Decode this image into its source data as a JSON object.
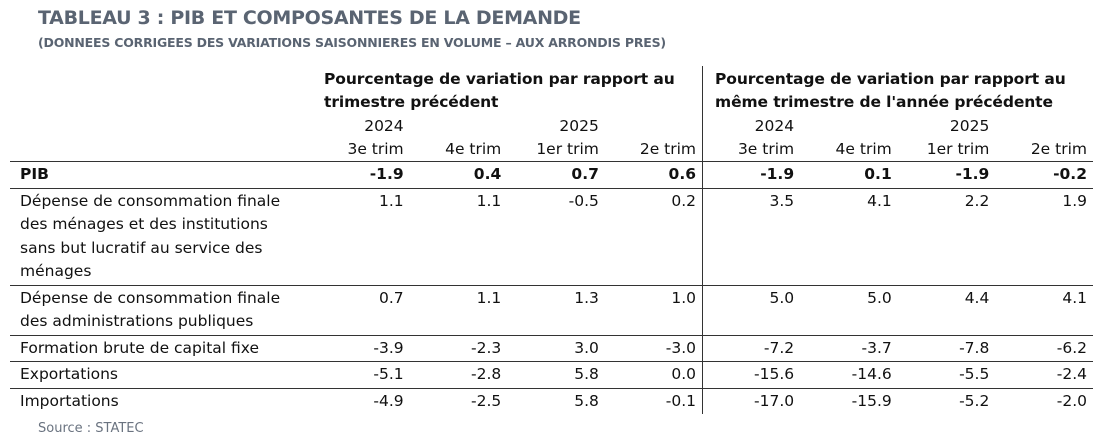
{
  "title": "TABLEAU 3 : PIB ET COMPOSANTES DE LA DEMANDE",
  "subtitle": "(DONNEES CORRIGEES DES VARIATIONS SAISONNIERES EN VOLUME – AUX ARRONDIS PRES)",
  "groups": [
    "Pourcentage de variation par rapport au trimestre précédent",
    "Pourcentage de variation par rapport au même trimestre de l'année précédente"
  ],
  "years": [
    "2024",
    "2025",
    "2024",
    "2025"
  ],
  "quarters": [
    "3e trim",
    "4e trim",
    "1er trim",
    "2e trim",
    "3e trim",
    "4e trim",
    "1er trim",
    "2e trim"
  ],
  "rows": [
    {
      "label": "PIB",
      "values": [
        "-1.9",
        "0.4",
        "0.7",
        "0.6",
        "-1.9",
        "0.1",
        "-1.9",
        "-0.2"
      ]
    },
    {
      "label": "Dépense de consommation finale des ménages et des institutions sans but lucratif au service des ménages",
      "values": [
        "1.1",
        "1.1",
        "-0.5",
        "0.2",
        "3.5",
        "4.1",
        "2.2",
        "1.9"
      ]
    },
    {
      "label": "Dépense de consommation finale des administrations publiques",
      "values": [
        "0.7",
        "1.1",
        "1.3",
        "1.0",
        "5.0",
        "5.0",
        "4.4",
        "4.1"
      ]
    },
    {
      "label": "Formation brute de capital fixe",
      "values": [
        "-3.9",
        "-2.3",
        "3.0",
        "-3.0",
        "-7.2",
        "-3.7",
        "-7.8",
        "-6.2"
      ]
    },
    {
      "label": "Exportations",
      "values": [
        "-5.1",
        "-2.8",
        "5.8",
        "0.0",
        "-15.6",
        "-14.6",
        "-5.5",
        "-2.4"
      ]
    },
    {
      "label": "Importations",
      "values": [
        "-4.9",
        "-2.5",
        "5.8",
        "-0.1",
        "-17.0",
        "-15.9",
        "-5.2",
        "-2.0"
      ]
    }
  ],
  "source": "Source : STATEC"
}
